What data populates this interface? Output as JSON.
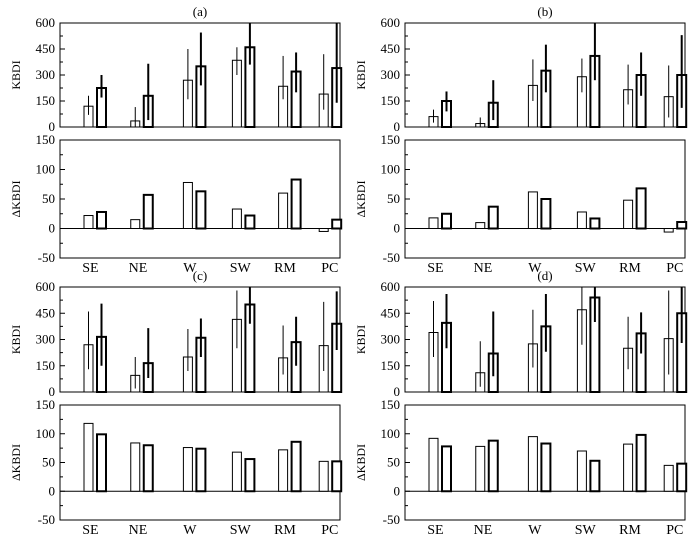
{
  "colors": {
    "bar_stroke": "#000000",
    "bar_fill": "#ffffff",
    "axis": "#000000"
  },
  "chart_data": [
    {
      "panel": "(a)",
      "label": "(a)",
      "type": "bar",
      "categories": [
        "SE",
        "NE",
        "W",
        "SW",
        "RM",
        "PC"
      ],
      "top": {
        "ylabel": "KBDI",
        "ylim": [
          0,
          600
        ],
        "yticks": [
          0,
          150,
          300,
          450,
          600
        ],
        "series": [
          {
            "style": "thin",
            "values": [
              120,
              35,
              270,
              385,
              235,
              190
            ],
            "err_low": [
              70,
              0,
              160,
              300,
              160,
              100
            ],
            "err_high": [
              180,
              115,
              450,
              460,
              410,
              420
            ]
          },
          {
            "style": "thick",
            "values": [
              225,
              180,
              350,
              460,
              320,
              340
            ],
            "err_low": [
              170,
              40,
              240,
              360,
              200,
              140
            ],
            "err_high": [
              300,
              365,
              545,
              600,
              430,
              600
            ]
          }
        ]
      },
      "bottom": {
        "ylabel": "ΔKBDI",
        "ylim": [
          -50,
          150
        ],
        "yticks": [
          -50,
          0,
          50,
          100,
          150
        ],
        "series": [
          {
            "style": "thin",
            "values": [
              22,
              15,
              78,
              33,
              60,
              -5
            ]
          },
          {
            "style": "thick",
            "values": [
              28,
              57,
              63,
              22,
              83,
              15
            ]
          }
        ]
      }
    },
    {
      "panel": "(b)",
      "label": "(b)",
      "type": "bar",
      "categories": [
        "SE",
        "NE",
        "W",
        "SW",
        "RM",
        "PC"
      ],
      "top": {
        "ylabel": "KBDI",
        "ylim": [
          0,
          600
        ],
        "yticks": [
          0,
          150,
          300,
          450,
          600
        ],
        "series": [
          {
            "style": "thin",
            "values": [
              60,
              20,
              240,
              290,
              215,
              175
            ],
            "err_low": [
              25,
              0,
              150,
              200,
              130,
              55
            ],
            "err_high": [
              100,
              55,
              390,
              395,
              360,
              355
            ]
          },
          {
            "style": "thick",
            "values": [
              150,
              140,
              325,
              410,
              300,
              300
            ],
            "err_low": [
              90,
              40,
              200,
              270,
              180,
              110
            ],
            "err_high": [
              205,
              270,
              475,
              600,
              430,
              530
            ]
          }
        ]
      },
      "bottom": {
        "ylabel": "ΔKBDI",
        "ylim": [
          -50,
          150
        ],
        "yticks": [
          -50,
          0,
          50,
          100,
          150
        ],
        "series": [
          {
            "style": "thin",
            "values": [
              18,
              10,
              62,
              28,
              48,
              -6
            ]
          },
          {
            "style": "thick",
            "values": [
              25,
              37,
              50,
              17,
              68,
              11
            ]
          }
        ]
      }
    },
    {
      "panel": "(c)",
      "label": "(c)",
      "type": "bar",
      "categories": [
        "SE",
        "NE",
        "W",
        "SW",
        "RM",
        "PC"
      ],
      "top": {
        "ylabel": "KBDI",
        "ylim": [
          0,
          600
        ],
        "yticks": [
          0,
          150,
          300,
          450,
          600
        ],
        "series": [
          {
            "style": "thin",
            "values": [
              270,
              95,
              200,
              415,
              195,
              265
            ],
            "err_low": [
              130,
              20,
              120,
              250,
              100,
              120
            ],
            "err_high": [
              460,
              200,
              360,
              580,
              380,
              515
            ]
          },
          {
            "style": "thick",
            "values": [
              315,
              165,
              310,
              500,
              285,
              390
            ],
            "err_low": [
              150,
              80,
              200,
              390,
              150,
              240
            ],
            "err_high": [
              505,
              365,
              420,
              600,
              430,
              575
            ]
          }
        ]
      },
      "bottom": {
        "ylabel": "ΔKBDI",
        "ylim": [
          -50,
          150
        ],
        "yticks": [
          -50,
          0,
          50,
          100,
          150
        ],
        "series": [
          {
            "style": "thin",
            "values": [
              118,
              84,
              76,
              68,
              72,
              52
            ]
          },
          {
            "style": "thick",
            "values": [
              99,
              80,
              74,
              56,
              86,
              52
            ]
          }
        ]
      }
    },
    {
      "panel": "(d)",
      "label": "(d)",
      "type": "bar",
      "categories": [
        "SE",
        "NE",
        "W",
        "SW",
        "RM",
        "PC"
      ],
      "top": {
        "ylabel": "KBDI",
        "ylim": [
          0,
          600
        ],
        "yticks": [
          0,
          150,
          300,
          450,
          600
        ],
        "series": [
          {
            "style": "thin",
            "values": [
              340,
              110,
              275,
              470,
              250,
              305
            ],
            "err_low": [
              200,
              30,
              140,
              270,
              130,
              100
            ],
            "err_high": [
              520,
              290,
              470,
              600,
              430,
              580
            ]
          },
          {
            "style": "thick",
            "values": [
              395,
              220,
              375,
              540,
              335,
              450
            ],
            "err_low": [
              250,
              90,
              230,
              400,
              220,
              280
            ],
            "err_high": [
              560,
              460,
              560,
              600,
              455,
              600
            ]
          }
        ]
      },
      "bottom": {
        "ylabel": "ΔKBDI",
        "ylim": [
          -50,
          150
        ],
        "yticks": [
          -50,
          0,
          50,
          100,
          150
        ],
        "series": [
          {
            "style": "thin",
            "values": [
              92,
              78,
              95,
              70,
              82,
              45
            ]
          },
          {
            "style": "thick",
            "values": [
              78,
              88,
              83,
              53,
              98,
              48
            ]
          }
        ]
      }
    }
  ]
}
